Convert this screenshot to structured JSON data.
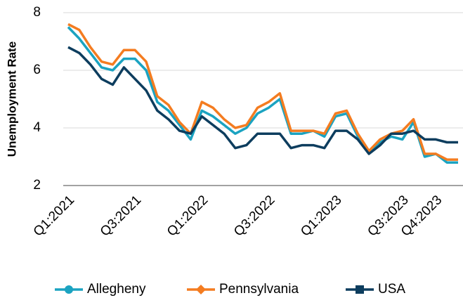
{
  "chart_data": {
    "type": "line",
    "ylabel": "Unemployment Rate",
    "categories": [
      "Q1:2021",
      null,
      null,
      null,
      null,
      null,
      "Q3:2021",
      null,
      null,
      null,
      null,
      null,
      "Q1:2022",
      null,
      null,
      null,
      null,
      null,
      "Q3:2022",
      null,
      null,
      null,
      null,
      null,
      "Q1:2023",
      null,
      null,
      null,
      null,
      null,
      "Q3:2023",
      null,
      null,
      "Q4:2023",
      null,
      null
    ],
    "series": [
      {
        "name": "Allegheny",
        "color": "#1ba3c1",
        "marker": "circle",
        "values": [
          7.5,
          7.1,
          6.6,
          6.1,
          6.0,
          6.4,
          6.4,
          6.0,
          4.9,
          4.6,
          4.1,
          3.6,
          4.6,
          4.4,
          4.1,
          3.8,
          4.0,
          4.5,
          4.7,
          5.0,
          3.8,
          3.8,
          3.9,
          3.7,
          4.4,
          4.5,
          3.7,
          3.2,
          3.5,
          3.7,
          3.6,
          4.2,
          3.0,
          3.1,
          2.8,
          2.8
        ]
      },
      {
        "name": "Pennsylvania",
        "color": "#f47c20",
        "marker": "diamond",
        "values": [
          7.6,
          7.4,
          6.8,
          6.3,
          6.2,
          6.7,
          6.7,
          6.3,
          5.1,
          4.8,
          4.2,
          3.8,
          4.9,
          4.7,
          4.3,
          4.0,
          4.1,
          4.7,
          4.9,
          5.2,
          3.9,
          3.9,
          3.9,
          3.8,
          4.5,
          4.6,
          3.8,
          3.2,
          3.6,
          3.8,
          3.9,
          4.3,
          3.1,
          3.1,
          2.9,
          2.9
        ]
      },
      {
        "name": "USA",
        "color": "#0d3d5e",
        "marker": "square",
        "values": [
          6.8,
          6.6,
          6.2,
          5.7,
          5.5,
          6.1,
          5.7,
          5.3,
          4.6,
          4.3,
          3.9,
          3.8,
          4.4,
          4.1,
          3.8,
          3.3,
          3.4,
          3.8,
          3.8,
          3.8,
          3.3,
          3.4,
          3.4,
          3.3,
          3.9,
          3.9,
          3.6,
          3.1,
          3.4,
          3.8,
          3.8,
          3.9,
          3.6,
          3.6,
          3.5,
          3.5
        ]
      }
    ],
    "ylim": [
      2,
      8
    ],
    "yticks": [
      2,
      4,
      6,
      8
    ],
    "grid": true,
    "legend": "bottom"
  }
}
